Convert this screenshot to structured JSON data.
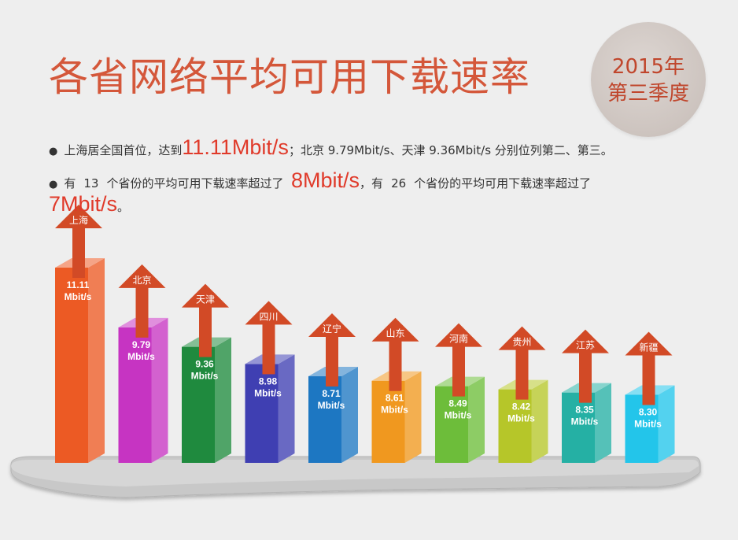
{
  "title": "各省网络平均可用下载速率",
  "badge": {
    "line1": "2015年",
    "line2": "第三季度"
  },
  "summary": {
    "line1_a": "上海居全国首位，达到",
    "line1_highlight": "11.11Mbit/s",
    "line1_b": "；北京 9.79Mbit/s、天津 9.36Mbit/s 分别位列第二、第三。",
    "line2_a": "有",
    "line2_num1": "13",
    "line2_b": "个省份的平均可用下载速率超过了",
    "line2_highlight1": "8Mbit/s",
    "line2_c": "，有",
    "line2_num2": "26",
    "line2_d": "个省份的平均可用下载速率超过了",
    "line3_highlight": "7Mbit/s",
    "line3_end": "。"
  },
  "chart_data": {
    "type": "bar",
    "title": "各省网络平均可用下载速率",
    "unit": "Mbit/s",
    "categories": [
      "上海",
      "北京",
      "天津",
      "四川",
      "辽宁",
      "山东",
      "河南",
      "贵州",
      "江苏",
      "新疆"
    ],
    "values": [
      11.11,
      9.79,
      9.36,
      8.98,
      8.71,
      8.61,
      8.49,
      8.42,
      8.35,
      8.3
    ],
    "value_labels": [
      "11.11",
      "9.79",
      "9.36",
      "8.98",
      "8.71",
      "8.61",
      "8.49",
      "8.42",
      "8.35",
      "8.30"
    ],
    "colors": [
      "#ec5a24",
      "#c634c2",
      "#1f8a3e",
      "#3f3fb2",
      "#1d77c2",
      "#f0981f",
      "#6dbd3a",
      "#b6c629",
      "#25b0a4",
      "#23c5ea"
    ]
  }
}
